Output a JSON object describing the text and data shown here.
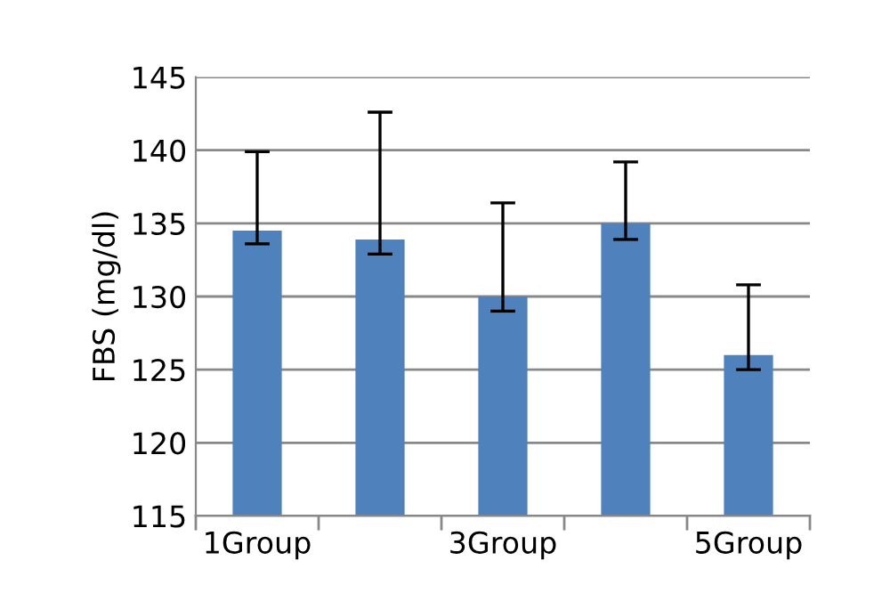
{
  "chart_data": {
    "type": "bar",
    "ylabel": "FBS (mg/dl)",
    "categories": [
      "1Group",
      null,
      "3Group",
      null,
      "5Group"
    ],
    "values": [
      134.5,
      133.9,
      130.0,
      135.0,
      126.0
    ],
    "errors": [
      [
        133.6,
        139.9
      ],
      [
        132.9,
        142.6
      ],
      [
        129.0,
        136.4
      ],
      [
        133.9,
        139.2
      ],
      [
        125.0,
        130.8
      ]
    ],
    "color": "#4f81bd",
    "ylim": [
      115,
      145
    ],
    "yticks": [
      115,
      120,
      125,
      130,
      135,
      140,
      145
    ],
    "grid": "y",
    "legend": false
  }
}
